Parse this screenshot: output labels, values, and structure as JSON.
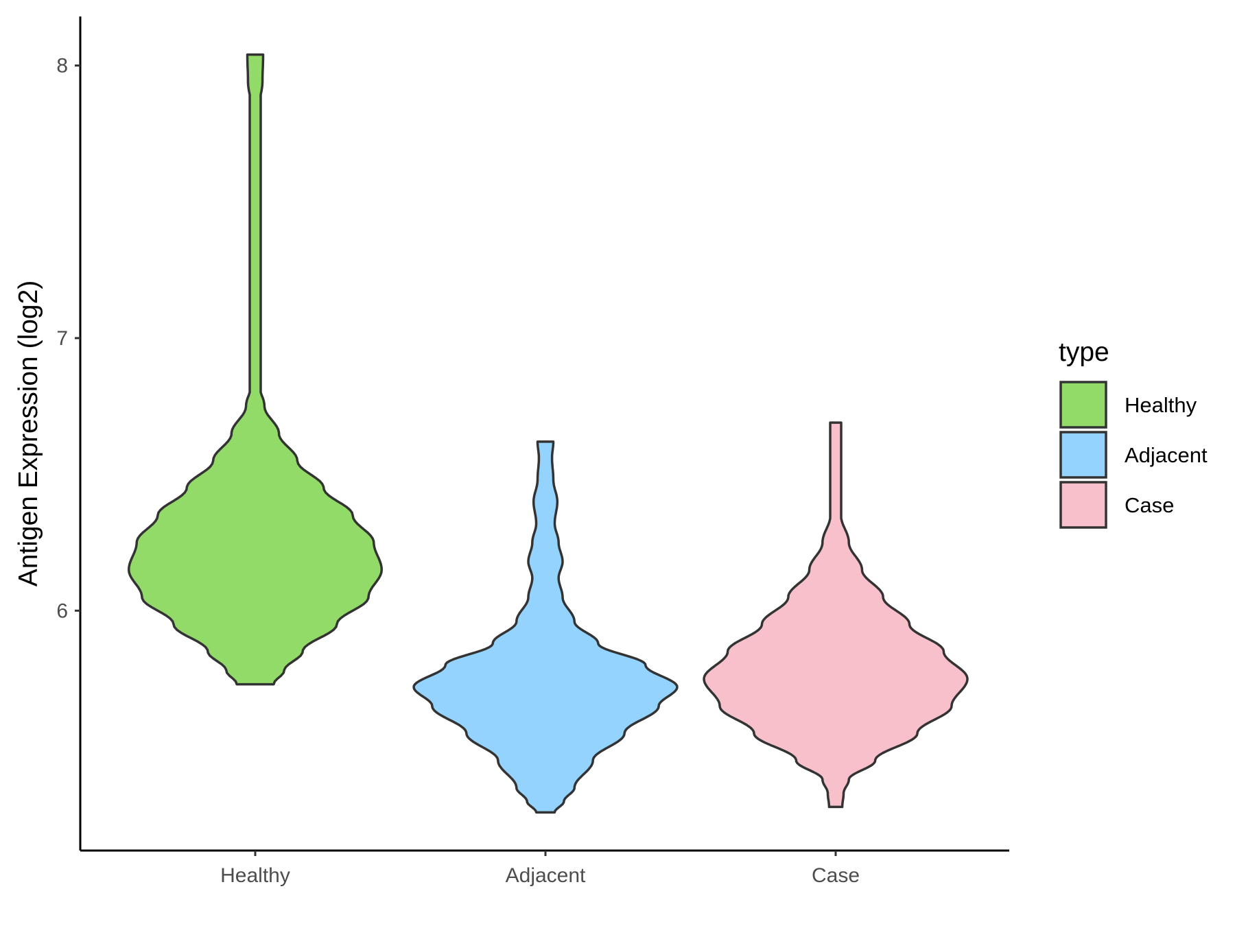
{
  "chart_data": {
    "type": "violin",
    "title": "",
    "xlabel": "",
    "ylabel": "Antigen Expression (log2)",
    "ylim": [
      5.12,
      8.18
    ],
    "yticks": [
      6,
      7,
      8
    ],
    "categories": [
      "Healthy",
      "Adjacent",
      "Case"
    ],
    "grid": false,
    "legend": {
      "title": "type",
      "position": "right",
      "entries": [
        {
          "label": "Healthy",
          "color": "#92db69"
        },
        {
          "label": "Adjacent",
          "color": "#93d3fd"
        },
        {
          "label": "Case",
          "color": "#f7c0cb"
        }
      ]
    },
    "series": [
      {
        "category": "Healthy",
        "color": "#92db69",
        "min": 5.73,
        "max": 8.04,
        "density_profile": [
          [
            5.73,
            0.14
          ],
          [
            5.78,
            0.22
          ],
          [
            5.85,
            0.36
          ],
          [
            5.95,
            0.62
          ],
          [
            6.05,
            0.86
          ],
          [
            6.15,
            0.96
          ],
          [
            6.25,
            0.9
          ],
          [
            6.35,
            0.74
          ],
          [
            6.45,
            0.52
          ],
          [
            6.55,
            0.32
          ],
          [
            6.65,
            0.18
          ],
          [
            6.75,
            0.07
          ],
          [
            6.85,
            0.01
          ],
          [
            7.0,
            0.006
          ],
          [
            7.4,
            0.006
          ],
          [
            7.78,
            0.006
          ],
          [
            7.85,
            0.03
          ],
          [
            7.94,
            0.055
          ],
          [
            8.04,
            0.06
          ]
        ]
      },
      {
        "category": "Adjacent",
        "color": "#93d3fd",
        "min": 5.26,
        "max": 6.62,
        "density_profile": [
          [
            5.26,
            0.07
          ],
          [
            5.3,
            0.14
          ],
          [
            5.35,
            0.22
          ],
          [
            5.45,
            0.36
          ],
          [
            5.55,
            0.6
          ],
          [
            5.65,
            0.86
          ],
          [
            5.72,
            1.0
          ],
          [
            5.8,
            0.76
          ],
          [
            5.88,
            0.4
          ],
          [
            5.96,
            0.22
          ],
          [
            6.05,
            0.13
          ],
          [
            6.12,
            0.1
          ],
          [
            6.18,
            0.13
          ],
          [
            6.25,
            0.1
          ],
          [
            6.32,
            0.07
          ],
          [
            6.4,
            0.09
          ],
          [
            6.48,
            0.06
          ],
          [
            6.56,
            0.05
          ],
          [
            6.62,
            0.06
          ]
        ]
      },
      {
        "category": "Case",
        "color": "#f7c0cb",
        "min": 5.28,
        "max": 6.69,
        "density_profile": [
          [
            5.28,
            0.05
          ],
          [
            5.33,
            0.06
          ],
          [
            5.38,
            0.1
          ],
          [
            5.45,
            0.3
          ],
          [
            5.55,
            0.62
          ],
          [
            5.65,
            0.88
          ],
          [
            5.75,
            1.0
          ],
          [
            5.85,
            0.82
          ],
          [
            5.95,
            0.56
          ],
          [
            6.05,
            0.36
          ],
          [
            6.15,
            0.2
          ],
          [
            6.25,
            0.1
          ],
          [
            6.35,
            0.04
          ],
          [
            6.45,
            0.006
          ],
          [
            6.55,
            0.005
          ],
          [
            6.69,
            0.006
          ]
        ]
      }
    ]
  }
}
